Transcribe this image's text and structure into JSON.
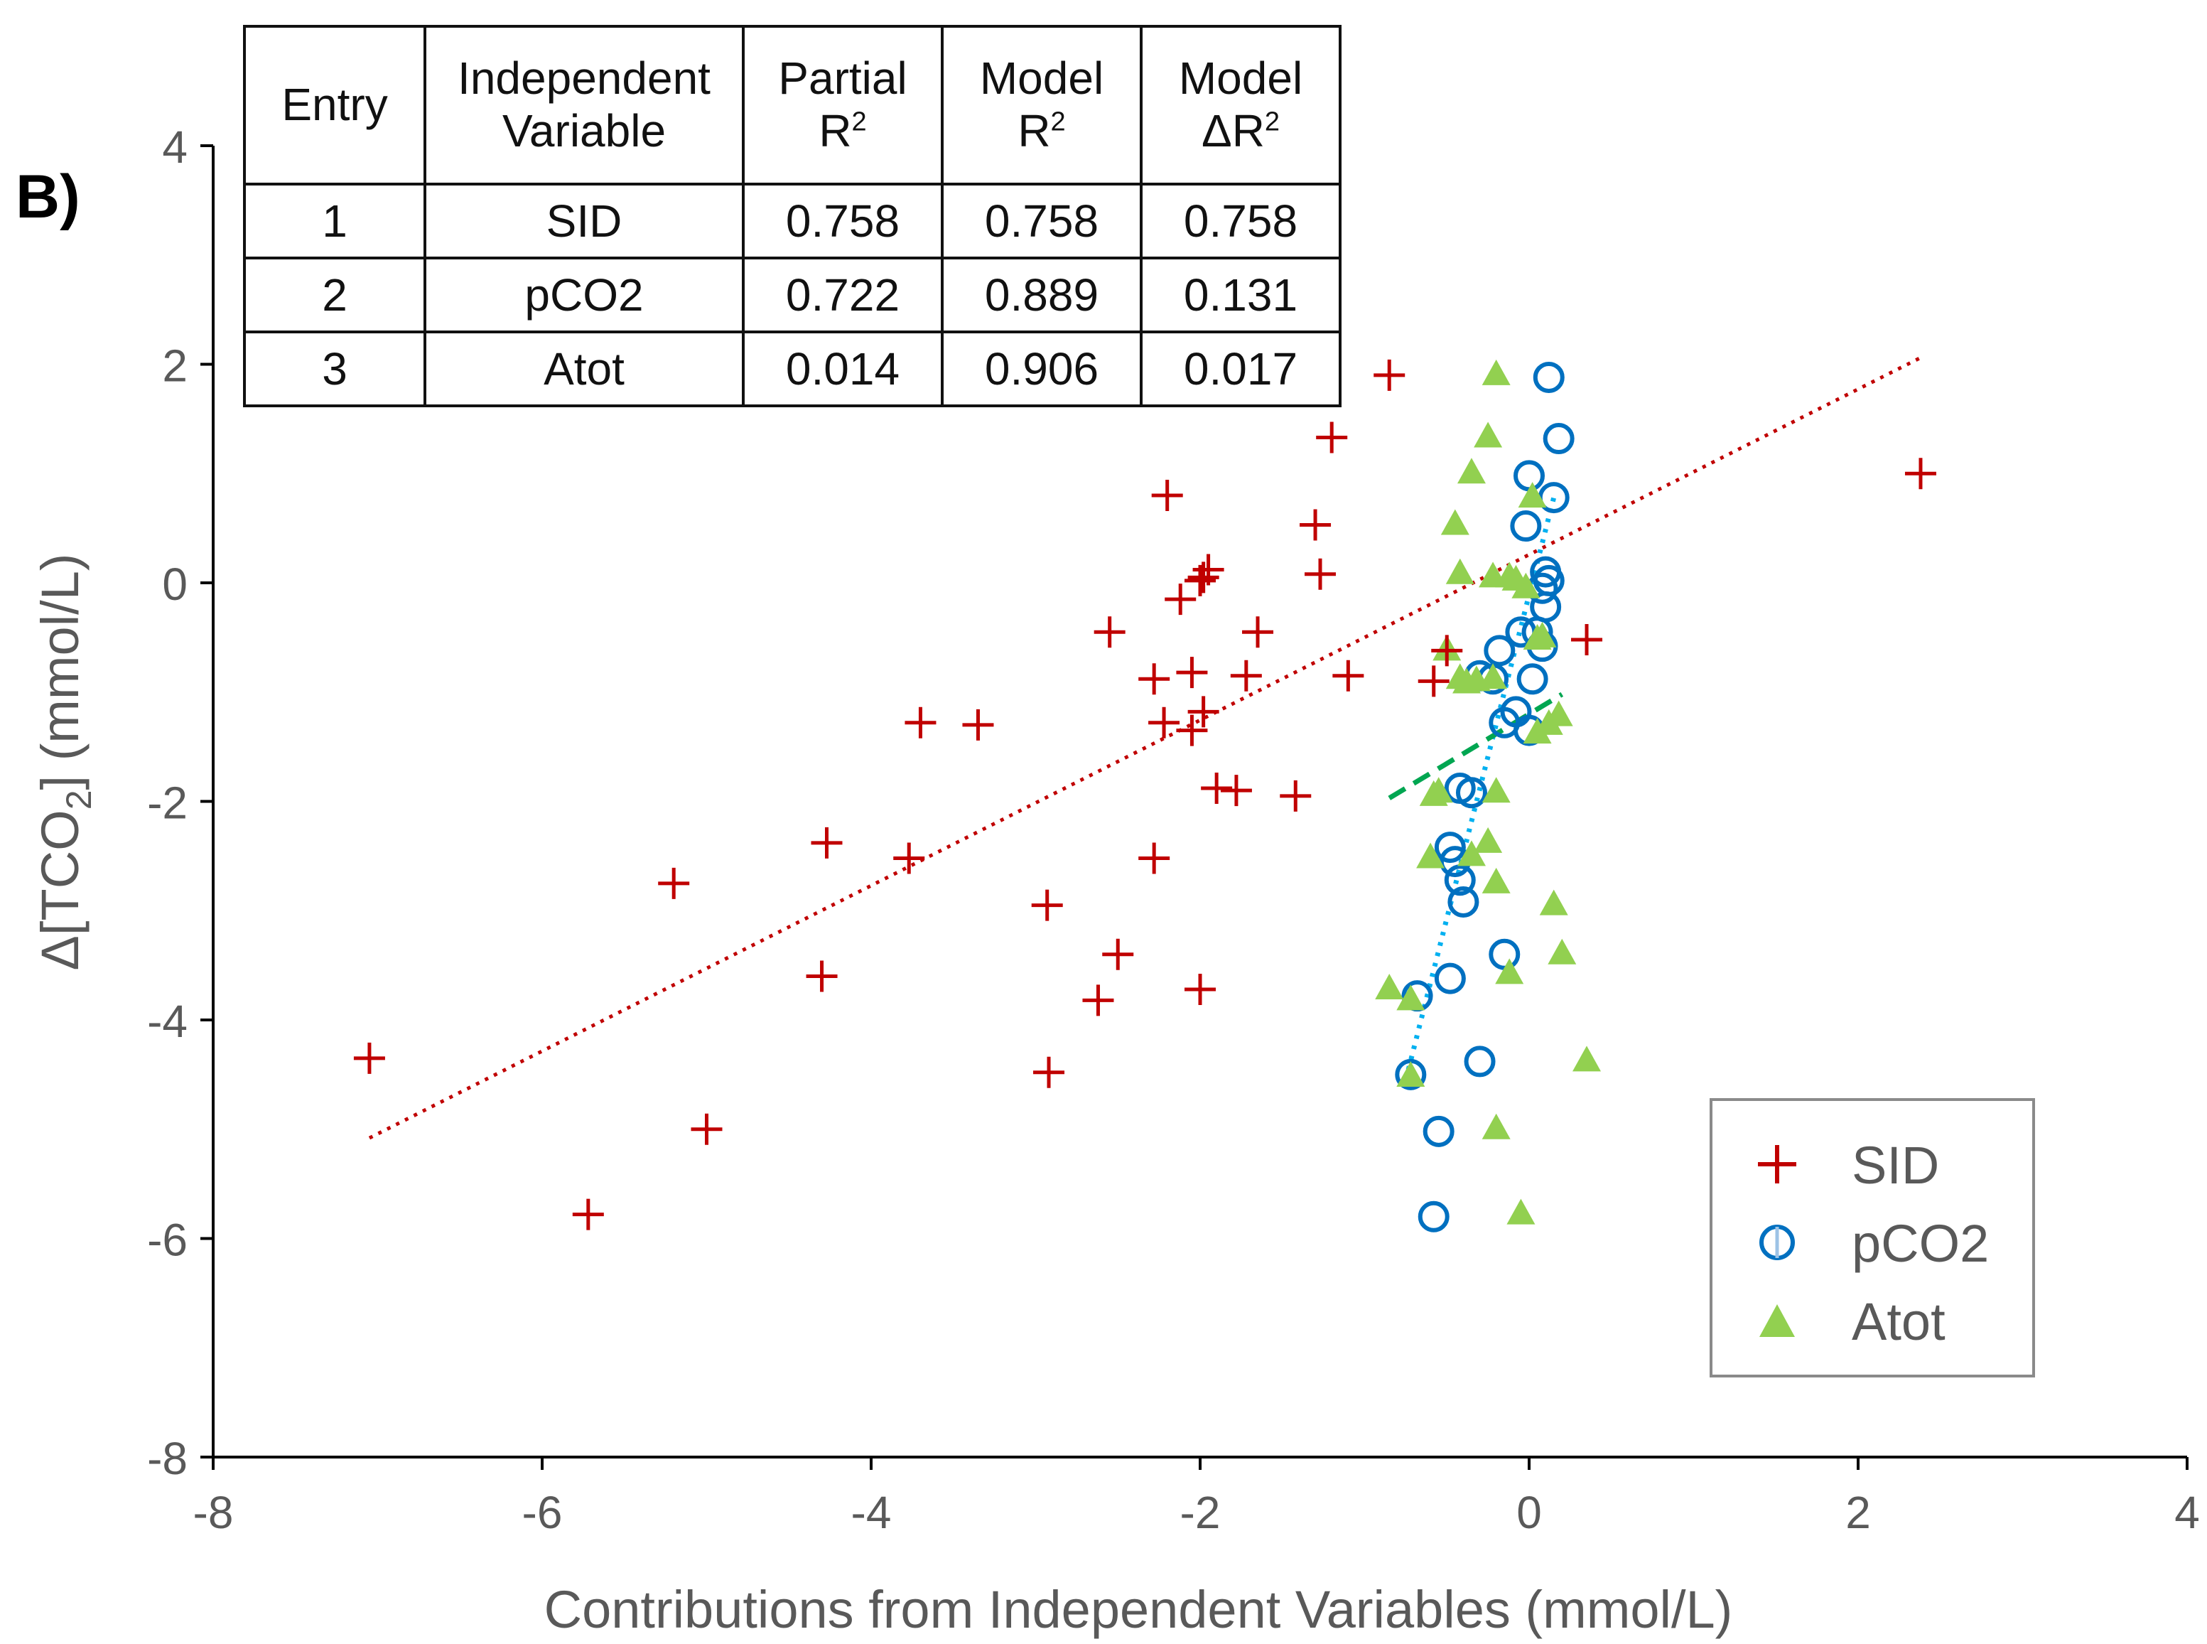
{
  "panel_label": "B)",
  "table": {
    "headers": {
      "entry": "Entry",
      "independent_variable_line1": "Independent",
      "independent_variable_line2": "Variable",
      "partial_r2_line1": "Partial",
      "partial_r2_line2": "R",
      "model_r2_line1": "Model",
      "model_r2_line2": "R",
      "model_delta_r2_line1": "Model",
      "model_delta_r2_line2": "ΔR",
      "sup": "2"
    },
    "rows": [
      {
        "entry": "1",
        "variable": "SID",
        "partial_r2": "0.758",
        "model_r2": "0.758",
        "model_delta_r2": "0.758"
      },
      {
        "entry": "2",
        "variable": "pCO2",
        "partial_r2": "0.722",
        "model_r2": "0.889",
        "model_delta_r2": "0.131"
      },
      {
        "entry": "3",
        "variable": "Atot",
        "partial_r2": "0.014",
        "model_r2": "0.906",
        "model_delta_r2": "0.017"
      }
    ]
  },
  "legend": {
    "items": [
      {
        "label": "SID"
      },
      {
        "label": "pCO2"
      },
      {
        "label": "Atot"
      }
    ]
  },
  "chart_data": {
    "type": "scatter",
    "title": "",
    "xlabel": "Contributions from Independent  Variables (mmol/L)",
    "ylabel_parts": {
      "prefix": "Δ[TCO",
      "sub": "2",
      "suffix": "] (mmol/L)"
    },
    "xlim": [
      -8,
      4
    ],
    "ylim": [
      -8,
      4
    ],
    "x_ticks": [
      -8,
      -6,
      -4,
      -2,
      0,
      2,
      4
    ],
    "y_ticks": [
      -8,
      -6,
      -4,
      -2,
      0,
      2,
      4
    ],
    "x_tick_labels": [
      "-8",
      "-6",
      "-4",
      "-2",
      "0",
      "2",
      "4"
    ],
    "y_tick_labels": [
      "-8",
      "-6",
      "-4",
      "-2",
      "0",
      "2",
      "4"
    ],
    "grid": false,
    "legend_position": "bottom-right",
    "colors": {
      "SID": "#c00000",
      "pCO2": "#0070c0",
      "pCO2_fill": "#9dc3e6",
      "Atot": "#92d050",
      "sid_trend": "#c00000",
      "pco2_trend": "#00b0f0",
      "atot_trend": "#00a651",
      "axis": "#000000",
      "tick_text": "#595959"
    },
    "series": [
      {
        "name": "SID",
        "marker": "plus",
        "points": [
          [
            -0.85,
            1.9
          ],
          [
            -1.2,
            1.33
          ],
          [
            -2.2,
            0.8
          ],
          [
            -1.3,
            0.53
          ],
          [
            -1.95,
            0.12
          ],
          [
            -1.98,
            0.05
          ],
          [
            -2.0,
            0.02
          ],
          [
            -1.27,
            0.08
          ],
          [
            -2.12,
            -0.15
          ],
          [
            -2.55,
            -0.45
          ],
          [
            -1.65,
            -0.45
          ],
          [
            -2.28,
            -0.88
          ],
          [
            -2.05,
            -0.82
          ],
          [
            -1.72,
            -0.85
          ],
          [
            -1.1,
            -0.85
          ],
          [
            -0.58,
            -0.9
          ],
          [
            -1.98,
            -1.18
          ],
          [
            -3.7,
            -1.28
          ],
          [
            -3.35,
            -1.3
          ],
          [
            -2.22,
            -1.28
          ],
          [
            -2.05,
            -1.35
          ],
          [
            -1.9,
            -1.88
          ],
          [
            -1.78,
            -1.9
          ],
          [
            -1.42,
            -1.95
          ],
          [
            -4.27,
            -2.38
          ],
          [
            -3.77,
            -2.52
          ],
          [
            -2.28,
            -2.52
          ],
          [
            -5.2,
            -2.75
          ],
          [
            -2.93,
            -2.95
          ],
          [
            -2.5,
            -3.4
          ],
          [
            -4.3,
            -3.6
          ],
          [
            -2.62,
            -3.82
          ],
          [
            -2.0,
            -3.72
          ],
          [
            -7.05,
            -4.35
          ],
          [
            -2.92,
            -4.48
          ],
          [
            -5.0,
            -5.0
          ],
          [
            -5.72,
            -5.78
          ],
          [
            2.38,
            1.0
          ],
          [
            0.35,
            -0.52
          ],
          [
            -0.5,
            -0.62
          ]
        ]
      },
      {
        "name": "pCO2",
        "marker": "circle",
        "points": [
          [
            0.12,
            1.88
          ],
          [
            0.18,
            1.32
          ],
          [
            0.0,
            0.98
          ],
          [
            0.15,
            0.78
          ],
          [
            -0.02,
            0.52
          ],
          [
            0.1,
            0.1
          ],
          [
            0.08,
            -0.05
          ],
          [
            0.12,
            0.02
          ],
          [
            0.1,
            -0.22
          ],
          [
            0.05,
            -0.45
          ],
          [
            -0.05,
            -0.45
          ],
          [
            0.08,
            -0.58
          ],
          [
            -0.18,
            -0.62
          ],
          [
            -0.3,
            -0.85
          ],
          [
            -0.22,
            -0.88
          ],
          [
            0.02,
            -0.88
          ],
          [
            -0.08,
            -1.18
          ],
          [
            -0.15,
            -1.28
          ],
          [
            0.0,
            -1.35
          ],
          [
            -0.42,
            -1.88
          ],
          [
            -0.35,
            -1.92
          ],
          [
            -0.48,
            -2.42
          ],
          [
            -0.45,
            -2.55
          ],
          [
            -0.42,
            -2.72
          ],
          [
            -0.4,
            -2.92
          ],
          [
            -0.15,
            -3.4
          ],
          [
            -0.48,
            -3.62
          ],
          [
            -0.68,
            -3.78
          ],
          [
            -0.72,
            -4.5
          ],
          [
            -0.3,
            -4.38
          ],
          [
            -0.55,
            -5.02
          ],
          [
            -0.58,
            -5.8
          ]
        ]
      },
      {
        "name": "Atot",
        "marker": "triangle",
        "points": [
          [
            -0.2,
            1.9
          ],
          [
            -0.25,
            1.33
          ],
          [
            -0.35,
            1.0
          ],
          [
            0.02,
            0.78
          ],
          [
            -0.45,
            0.53
          ],
          [
            -0.42,
            0.08
          ],
          [
            -0.22,
            0.05
          ],
          [
            -0.12,
            0.05
          ],
          [
            -0.08,
            0.02
          ],
          [
            -0.02,
            -0.05
          ],
          [
            0.05,
            -0.52
          ],
          [
            0.08,
            -0.5
          ],
          [
            -0.5,
            -0.62
          ],
          [
            -0.42,
            -0.88
          ],
          [
            -0.32,
            -0.9
          ],
          [
            -0.22,
            -0.88
          ],
          [
            -0.38,
            -0.92
          ],
          [
            0.18,
            -1.22
          ],
          [
            0.12,
            -1.3
          ],
          [
            0.05,
            -1.38
          ],
          [
            -0.55,
            -1.92
          ],
          [
            -0.58,
            -1.95
          ],
          [
            -0.2,
            -1.92
          ],
          [
            -0.6,
            -2.52
          ],
          [
            -0.25,
            -2.38
          ],
          [
            -0.35,
            -2.5
          ],
          [
            -0.2,
            -2.75
          ],
          [
            0.15,
            -2.95
          ],
          [
            0.2,
            -3.4
          ],
          [
            -0.12,
            -3.58
          ],
          [
            -0.85,
            -3.72
          ],
          [
            -0.72,
            -3.82
          ],
          [
            0.35,
            -4.38
          ],
          [
            -0.72,
            -4.52
          ],
          [
            -0.2,
            -5.0
          ],
          [
            -0.05,
            -5.78
          ]
        ]
      }
    ],
    "trend_lines": [
      {
        "name": "SID-trend",
        "from": [
          -7.05,
          -5.08
        ],
        "to": [
          2.38,
          2.06
        ],
        "style": "dotted"
      },
      {
        "name": "pCO2-trend",
        "from": [
          -0.75,
          -4.55
        ],
        "to": [
          0.15,
          0.78
        ],
        "style": "dotted"
      },
      {
        "name": "Atot-trend",
        "from": [
          -0.85,
          -1.97
        ],
        "to": [
          0.2,
          -1.02
        ],
        "style": "dashed"
      }
    ]
  }
}
